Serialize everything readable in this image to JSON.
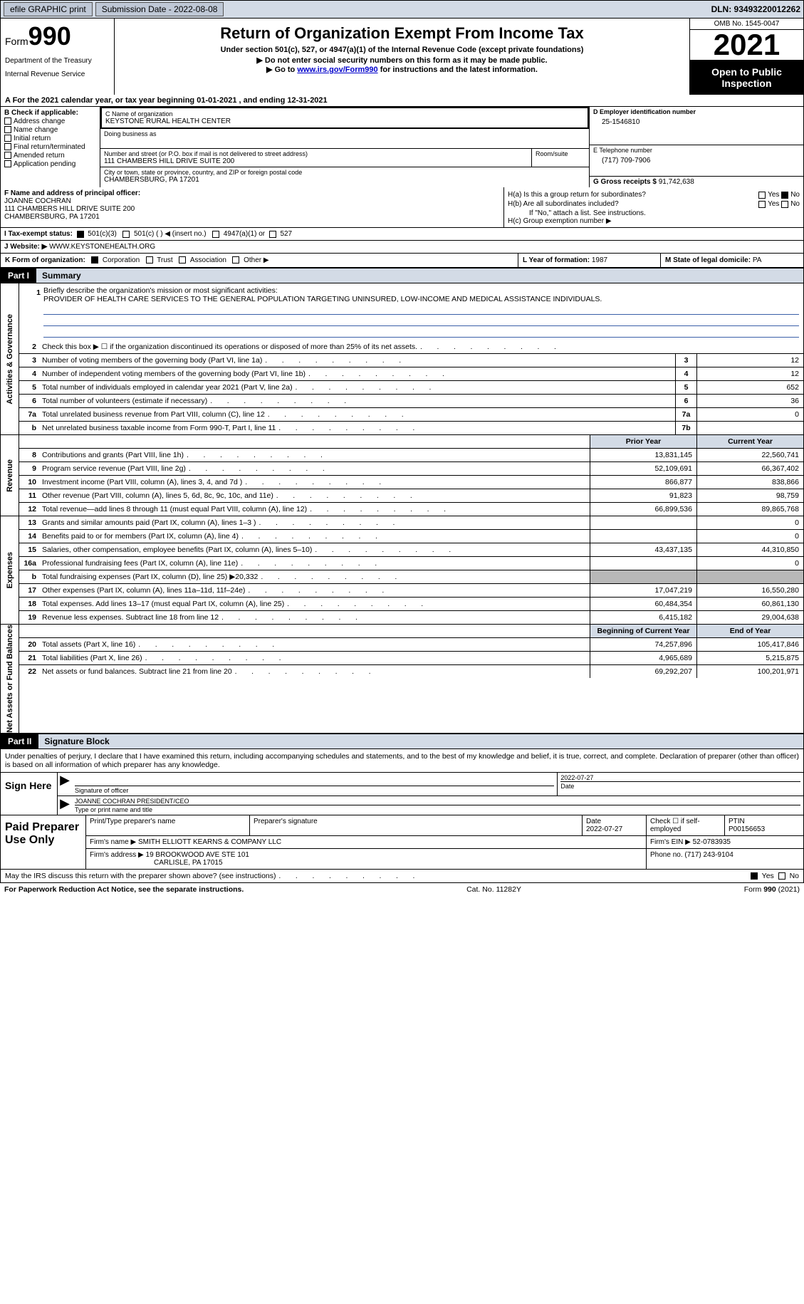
{
  "topbar": {
    "efile_label": "efile GRAPHIC print",
    "submission_label": "Submission Date - 2022-08-08",
    "dln_label": "DLN: 93493220012262"
  },
  "header": {
    "form_word": "Form",
    "form_num": "990",
    "dept": "Department of the Treasury",
    "irs": "Internal Revenue Service",
    "title": "Return of Organization Exempt From Income Tax",
    "sub1": "Under section 501(c), 527, or 4947(a)(1) of the Internal Revenue Code (except private foundations)",
    "sub2": "▶ Do not enter social security numbers on this form as it may be made public.",
    "sub3_a": "▶ Go to ",
    "sub3_link": "www.irs.gov/Form990",
    "sub3_b": " for instructions and the latest information.",
    "omb": "OMB No. 1545-0047",
    "year": "2021",
    "open": "Open to Public Inspection"
  },
  "line_a": {
    "text_a": "A For the 2021 calendar year, or tax year beginning ",
    "begin": "01-01-2021",
    "text_b": "   , and ending ",
    "end": "12-31-2021"
  },
  "col_b": {
    "label": "B Check if applicable:",
    "opts": [
      "Address change",
      "Name change",
      "Initial return",
      "Final return/terminated",
      "Amended return",
      "Application pending"
    ]
  },
  "org": {
    "c_label": "C Name of organization",
    "name": "KEYSTONE RURAL HEALTH CENTER",
    "dba_label": "Doing business as",
    "dba": "",
    "addr_label": "Number and street (or P.O. box if mail is not delivered to street address)",
    "room_label": "Room/suite",
    "addr": "111 CHAMBERS HILL DRIVE SUITE 200",
    "city_label": "City or town, state or province, country, and ZIP or foreign postal code",
    "city": "CHAMBERSBURG, PA  17201"
  },
  "col_d": {
    "ein_label": "D Employer identification number",
    "ein": "25-1546810",
    "phone_label": "E Telephone number",
    "phone": "(717) 709-7906",
    "gross_label": "G Gross receipts $ ",
    "gross": "91,742,638"
  },
  "f": {
    "label": "F Name and address of principal officer:",
    "name": "JOANNE COCHRAN",
    "addr1": "111 CHAMBERS HILL DRIVE SUITE 200",
    "addr2": "CHAMBERSBURG, PA  17201"
  },
  "h": {
    "a": "H(a)  Is this a group return for subordinates?",
    "b": "H(b)  Are all subordinates included?",
    "b_note": "If \"No,\" attach a list. See instructions.",
    "c": "H(c)  Group exemption number ▶",
    "yes": "Yes",
    "no": "No"
  },
  "i": {
    "label": "I    Tax-exempt status:",
    "o1": "501(c)(3)",
    "o2": "501(c) (  ) ◀ (insert no.)",
    "o3": "4947(a)(1) or",
    "o4": "527"
  },
  "j": {
    "label": "J   Website: ▶  ",
    "val": "WWW.KEYSTONEHEALTH.ORG"
  },
  "k": {
    "label": "K Form of organization:",
    "o1": "Corporation",
    "o2": "Trust",
    "o3": "Association",
    "o4": "Other ▶",
    "l_label": "L Year of formation: ",
    "l_val": "1987",
    "m_label": "M State of legal domicile: ",
    "m_val": "PA"
  },
  "part1": {
    "tag": "Part I",
    "title": "Summary"
  },
  "vtabs": {
    "ag": "Activities & Governance",
    "rev": "Revenue",
    "exp": "Expenses",
    "na": "Net Assets or Fund Balances"
  },
  "mission": {
    "num": "1",
    "label": "Briefly describe the organization's mission or most significant activities:",
    "text": "PROVIDER OF HEALTH CARE SERVICES TO THE GENERAL POPULATION TARGETING UNINSURED, LOW-INCOME AND MEDICAL ASSISTANCE INDIVIDUALS."
  },
  "rows_ag": [
    {
      "n": "2",
      "t": "Check this box ▶ ☐  if the organization discontinued its operations or disposed of more than 25% of its net assets.",
      "b": "",
      "v": ""
    },
    {
      "n": "3",
      "t": "Number of voting members of the governing body (Part VI, line 1a)",
      "b": "3",
      "v": "12"
    },
    {
      "n": "4",
      "t": "Number of independent voting members of the governing body (Part VI, line 1b)",
      "b": "4",
      "v": "12"
    },
    {
      "n": "5",
      "t": "Total number of individuals employed in calendar year 2021 (Part V, line 2a)",
      "b": "5",
      "v": "652"
    },
    {
      "n": "6",
      "t": "Total number of volunteers (estimate if necessary)",
      "b": "6",
      "v": "36"
    },
    {
      "n": "7a",
      "t": "Total unrelated business revenue from Part VIII, column (C), line 12",
      "b": "7a",
      "v": "0"
    },
    {
      "n": "b",
      "t": "Net unrelated business taxable income from Form 990-T, Part I, line 11",
      "b": "7b",
      "v": ""
    }
  ],
  "col_hdrs": {
    "py": "Prior Year",
    "cy": "Current Year"
  },
  "rows_rev": [
    {
      "n": "8",
      "t": "Contributions and grants (Part VIII, line 1h)",
      "py": "13,831,145",
      "cy": "22,560,741"
    },
    {
      "n": "9",
      "t": "Program service revenue (Part VIII, line 2g)",
      "py": "52,109,691",
      "cy": "66,367,402"
    },
    {
      "n": "10",
      "t": "Investment income (Part VIII, column (A), lines 3, 4, and 7d )",
      "py": "866,877",
      "cy": "838,866"
    },
    {
      "n": "11",
      "t": "Other revenue (Part VIII, column (A), lines 5, 6d, 8c, 9c, 10c, and 11e)",
      "py": "91,823",
      "cy": "98,759"
    },
    {
      "n": "12",
      "t": "Total revenue—add lines 8 through 11 (must equal Part VIII, column (A), line 12)",
      "py": "66,899,536",
      "cy": "89,865,768"
    }
  ],
  "rows_exp": [
    {
      "n": "13",
      "t": "Grants and similar amounts paid (Part IX, column (A), lines 1–3 )",
      "py": "",
      "cy": "0"
    },
    {
      "n": "14",
      "t": "Benefits paid to or for members (Part IX, column (A), line 4)",
      "py": "",
      "cy": "0"
    },
    {
      "n": "15",
      "t": "Salaries, other compensation, employee benefits (Part IX, column (A), lines 5–10)",
      "py": "43,437,135",
      "cy": "44,310,850"
    },
    {
      "n": "16a",
      "t": "Professional fundraising fees (Part IX, column (A), line 11e)",
      "py": "",
      "cy": "0"
    },
    {
      "n": "b",
      "t": "Total fundraising expenses (Part IX, column (D), line 25) ▶20,332",
      "py": "GRAY",
      "cy": "GRAY"
    },
    {
      "n": "17",
      "t": "Other expenses (Part IX, column (A), lines 11a–11d, 11f–24e)",
      "py": "17,047,219",
      "cy": "16,550,280"
    },
    {
      "n": "18",
      "t": "Total expenses. Add lines 13–17 (must equal Part IX, column (A), line 25)",
      "py": "60,484,354",
      "cy": "60,861,130"
    },
    {
      "n": "19",
      "t": "Revenue less expenses. Subtract line 18 from line 12",
      "py": "6,415,182",
      "cy": "29,004,638"
    }
  ],
  "col_hdrs2": {
    "boy": "Beginning of Current Year",
    "eoy": "End of Year"
  },
  "rows_na": [
    {
      "n": "20",
      "t": "Total assets (Part X, line 16)",
      "py": "74,257,896",
      "cy": "105,417,846"
    },
    {
      "n": "21",
      "t": "Total liabilities (Part X, line 26)",
      "py": "4,965,689",
      "cy": "5,215,875"
    },
    {
      "n": "22",
      "t": "Net assets or fund balances. Subtract line 21 from line 20",
      "py": "69,292,207",
      "cy": "100,201,971"
    }
  ],
  "part2": {
    "tag": "Part II",
    "title": "Signature Block",
    "intro": "Under penalties of perjury, I declare that I have examined this return, including accompanying schedules and statements, and to the best of my knowledge and belief, it is true, correct, and complete. Declaration of preparer (other than officer) is based on all information of which preparer has any knowledge."
  },
  "sign": {
    "here": "Sign Here",
    "sig_label": "Signature of officer",
    "date_label": "Date",
    "date": "2022-07-27",
    "name": "JOANNE COCHRAN  PRESIDENT/CEO",
    "name_label": "Type or print name and title"
  },
  "paid": {
    "label": "Paid Preparer Use Only",
    "preparer_name_label": "Print/Type preparer's name",
    "preparer_name": "",
    "preparer_sig_label": "Preparer's signature",
    "preparer_sig": "",
    "date_label": "Date",
    "date": "2022-07-27",
    "check_label": "Check ☐ if self-employed",
    "ptin_label": "PTIN",
    "ptin": "P00156653",
    "firm_name_label": "Firm's name      ▶ ",
    "firm_name": "SMITH ELLIOTT KEARNS & COMPANY LLC",
    "firm_ein_label": "Firm's EIN ▶ ",
    "firm_ein": "52-0783935",
    "firm_addr_label": "Firm's address ▶ ",
    "firm_addr1": "19 BROOKWOOD AVE STE 101",
    "firm_addr2": "CARLISLE, PA  17015",
    "phone_label": "Phone no. ",
    "phone": "(717) 243-9104"
  },
  "discuss": {
    "text": "May the IRS discuss this return with the preparer shown above? (see instructions)",
    "yes": "Yes",
    "no": "No"
  },
  "footer": {
    "left": "For Paperwork Reduction Act Notice, see the separate instructions.",
    "mid": "Cat. No. 11282Y",
    "right": "Form 990 (2021)"
  },
  "colors": {
    "header_bg": "#d3dbe6",
    "link": "#1a3f8f",
    "line_blue": "#3a5fa8",
    "gray_fill": "#b8b8b8"
  }
}
